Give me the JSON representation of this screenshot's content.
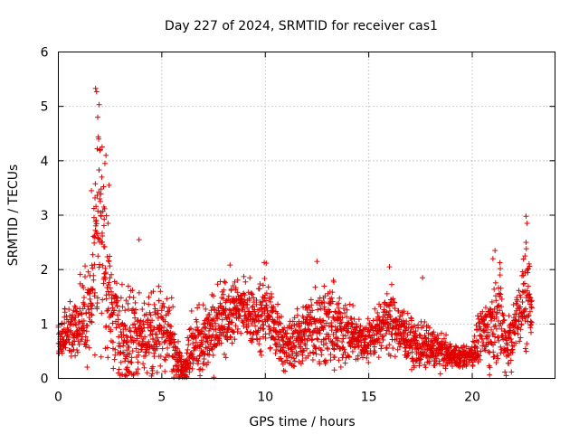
{
  "chart_data": {
    "type": "scatter",
    "title": "Day 227 of 2024, SRMTID for receiver cas1",
    "xlabel": "GPS time / hours",
    "ylabel": "SRMTID / TECUs",
    "xlim": [
      0,
      24
    ],
    "ylim": [
      0,
      6
    ],
    "x_ticks": [
      "0",
      "5",
      "10",
      "15",
      "20"
    ],
    "y_ticks": [
      "0",
      "1",
      "2",
      "3",
      "4",
      "5",
      "6"
    ],
    "grid": true,
    "marker": "+",
    "color": "#e00000",
    "series": [
      {
        "name": "cas1",
        "profile": {
          "hours": [
            0.0,
            0.3,
            0.6,
            1.0,
            1.3,
            1.6,
            1.8,
            2.0,
            2.2,
            2.4,
            2.6,
            2.9,
            3.3,
            3.7,
            4.0,
            4.5,
            5.0,
            5.5,
            6.0,
            6.3,
            6.8,
            7.3,
            7.8,
            8.3,
            8.8,
            9.3,
            9.8,
            10.0,
            10.5,
            11.0,
            11.5,
            12.0,
            12.5,
            13.0,
            13.5,
            14.0,
            14.5,
            15.0,
            15.5,
            16.0,
            16.3,
            16.8,
            17.3,
            17.8,
            18.3,
            18.8,
            19.2,
            19.6,
            20.0,
            20.3,
            20.6,
            21.0,
            21.3,
            21.6,
            22.0,
            22.3,
            22.6,
            22.9
          ],
          "median_tecu": [
            0.7,
            0.8,
            0.9,
            1.0,
            1.1,
            1.5,
            2.8,
            3.0,
            2.2,
            1.6,
            1.2,
            0.9,
            0.7,
            0.9,
            0.8,
            0.8,
            0.9,
            0.7,
            0.15,
            0.5,
            0.7,
            0.8,
            1.0,
            1.2,
            1.3,
            1.2,
            1.0,
            1.3,
            0.9,
            0.6,
            0.7,
            0.9,
            1.0,
            1.0,
            0.9,
            0.8,
            0.7,
            0.7,
            0.9,
            1.1,
            1.0,
            0.8,
            0.6,
            0.6,
            0.55,
            0.45,
            0.4,
            0.4,
            0.45,
            0.7,
            0.8,
            1.0,
            1.3,
            0.6,
            0.9,
            1.2,
            1.5,
            1.3
          ],
          "spread_tecu": [
            0.25,
            0.35,
            0.45,
            0.5,
            0.6,
            0.8,
            1.3,
            1.6,
            1.2,
            0.9,
            0.7,
            0.6,
            0.7,
            0.7,
            0.5,
            0.5,
            0.6,
            0.5,
            0.1,
            0.4,
            0.45,
            0.5,
            0.45,
            0.5,
            0.4,
            0.4,
            0.45,
            0.5,
            0.45,
            0.35,
            0.35,
            0.45,
            0.6,
            0.55,
            0.5,
            0.35,
            0.3,
            0.3,
            0.35,
            0.45,
            0.4,
            0.35,
            0.3,
            0.3,
            0.25,
            0.2,
            0.15,
            0.15,
            0.2,
            0.3,
            0.4,
            0.6,
            0.7,
            0.35,
            0.45,
            0.6,
            0.7,
            0.5
          ]
        },
        "highlights": [
          {
            "x": 1.8,
            "y": 5.33
          },
          {
            "x": 1.85,
            "y": 5.27
          },
          {
            "x": 1.9,
            "y": 4.8
          },
          {
            "x": 1.95,
            "y": 4.4
          },
          {
            "x": 1.88,
            "y": 4.22
          },
          {
            "x": 2.3,
            "y": 4.1
          },
          {
            "x": 2.25,
            "y": 3.95
          },
          {
            "x": 2.1,
            "y": 3.7
          },
          {
            "x": 2.45,
            "y": 3.55
          },
          {
            "x": 1.6,
            "y": 3.45
          },
          {
            "x": 2.0,
            "y": 3.3
          },
          {
            "x": 2.2,
            "y": 3.15
          },
          {
            "x": 2.4,
            "y": 2.85
          },
          {
            "x": 1.75,
            "y": 2.62
          },
          {
            "x": 3.9,
            "y": 2.55
          },
          {
            "x": 12.5,
            "y": 2.15
          },
          {
            "x": 9.95,
            "y": 2.13
          },
          {
            "x": 16.0,
            "y": 2.05
          },
          {
            "x": 17.6,
            "y": 1.85
          },
          {
            "x": 21.1,
            "y": 2.35
          },
          {
            "x": 21.0,
            "y": 2.2
          },
          {
            "x": 22.6,
            "y": 2.98
          },
          {
            "x": 22.65,
            "y": 2.85
          },
          {
            "x": 22.6,
            "y": 2.5
          },
          {
            "x": 22.55,
            "y": 2.25
          },
          {
            "x": 6.0,
            "y": 0.02
          },
          {
            "x": 6.1,
            "y": 0.02
          },
          {
            "x": 6.2,
            "y": 0.02
          },
          {
            "x": 3.3,
            "y": 0.05
          },
          {
            "x": 2.9,
            "y": 0.1
          }
        ]
      }
    ]
  }
}
